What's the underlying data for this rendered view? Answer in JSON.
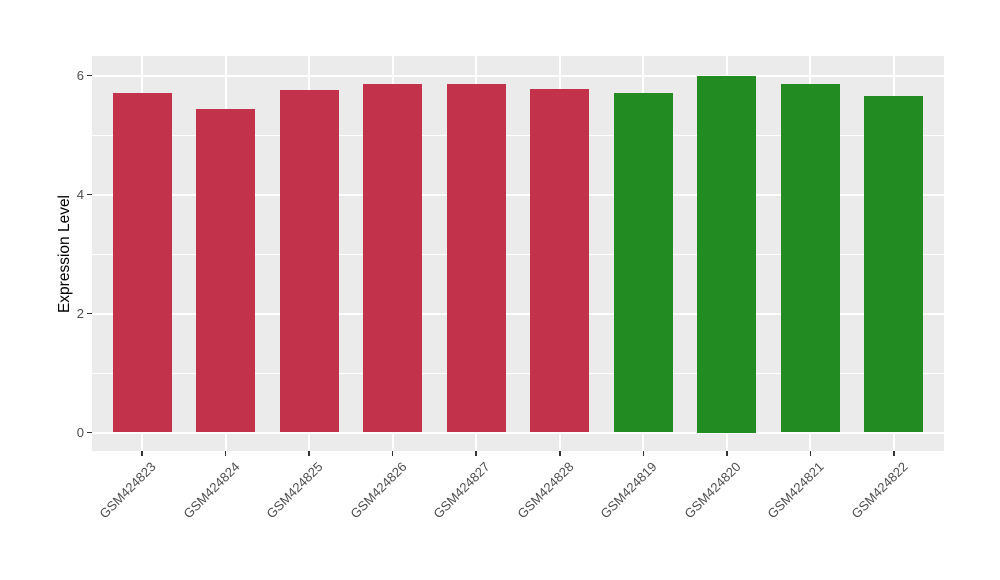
{
  "figure": {
    "background": "#ffffff"
  },
  "chart_data": {
    "type": "bar",
    "title": "",
    "xlabel": "",
    "ylabel": "Expression Level",
    "categories": [
      "GSM424823",
      "GSM424824",
      "GSM424825",
      "GSM424826",
      "GSM424827",
      "GSM424828",
      "GSM424819",
      "GSM424820",
      "GSM424821",
      "GSM424822"
    ],
    "values": [
      5.7,
      5.44,
      5.76,
      5.86,
      5.85,
      5.77,
      5.7,
      6.0,
      5.86,
      5.66
    ],
    "bar_colors": [
      "#C2324A",
      "#C2324A",
      "#C2324A",
      "#C2324A",
      "#C2324A",
      "#C2324A",
      "#228B22",
      "#228B22",
      "#228B22",
      "#228B22"
    ],
    "palette": {
      "red_group": "#C2324A",
      "green_group": "#228B22"
    },
    "yticks": [
      0,
      2,
      4,
      6
    ],
    "ytick_labels": [
      "0",
      "2",
      "4",
      "6"
    ],
    "yticks_minor": [
      1,
      3,
      5
    ],
    "ylim": [
      -0.3,
      6.33
    ],
    "grid": "horizontal major+minor, vertical major at category centers",
    "legend": "none",
    "panel_bg": "#EBEBEB",
    "grid_color": "#FFFFFF",
    "tick_color": "#333333",
    "axis_text_color": "#4D4D4D",
    "axis_title_color": "#000000"
  }
}
